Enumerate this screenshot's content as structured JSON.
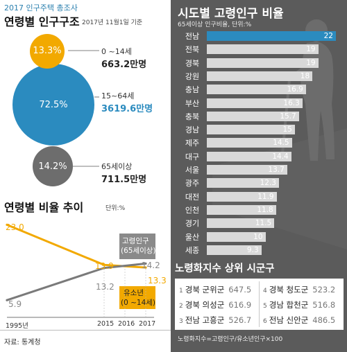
{
  "header": {
    "survey": "2017 인구주택 총조사"
  },
  "age_structure": {
    "title": "연령별 인구구조",
    "date": "2017년 11월1일 기준",
    "groups": [
      {
        "pct": "13.3%",
        "label": "0 ~14세",
        "amount": "663.2만명",
        "color": "#f2a900"
      },
      {
        "pct": "72.5%",
        "label": "15~64세",
        "amount": "3619.6만명",
        "color": "#2b8bbf"
      },
      {
        "pct": "14.2%",
        "label": "65세이상",
        "amount": "711.5만명",
        "color": "#6d6d6d"
      }
    ]
  },
  "trend": {
    "title": "연령별 비율 추이",
    "unit": "단위:%",
    "elderly_label_1": "고령인구",
    "elderly_label_2": "(65세이상)",
    "youth_label_1": "유소년",
    "youth_label_2": "(0 ~14세)",
    "x_labels": [
      "1995년",
      "2015",
      "2016",
      "2017"
    ],
    "youth_values": [
      "23.0",
      "13.9",
      "13.3"
    ],
    "elderly_values": [
      "5.9",
      "13.2",
      "14.2"
    ]
  },
  "source": "자료: 통계청",
  "region": {
    "title": "시도별 고령인구 비율",
    "subtitle": "65세이상 인구비율, 단위:%"
  },
  "index": {
    "title": "노령화지수 상위 시군구",
    "items": [
      {
        "rank": "1",
        "name": "경북 군위군",
        "value": "647.5"
      },
      {
        "rank": "2",
        "name": "경북 의성군",
        "value": "616.9"
      },
      {
        "rank": "3",
        "name": "전남 고흥군",
        "value": "526.7"
      },
      {
        "rank": "4",
        "name": "경북 청도군",
        "value": "523.2"
      },
      {
        "rank": "5",
        "name": "경남 합천군",
        "value": "516.8"
      },
      {
        "rank": "6",
        "name": "전남 신안군",
        "value": "486.5"
      }
    ],
    "formula": "노령화지수=고령인구/유소년인구×100"
  },
  "chart_data": [
    {
      "type": "bar",
      "title": "시도별 고령인구 비율",
      "subtitle": "65세이상 인구비율, 단위:%",
      "categories": [
        "전남",
        "전북",
        "경북",
        "강원",
        "충남",
        "부산",
        "충북",
        "경남",
        "제주",
        "대구",
        "서울",
        "광주",
        "대전",
        "인천",
        "경기",
        "울산",
        "세종"
      ],
      "values": [
        22,
        19,
        19,
        18,
        16.9,
        16.3,
        15.7,
        15,
        14.5,
        14.4,
        13.7,
        12.3,
        11.9,
        11.8,
        11.5,
        10,
        9.3
      ],
      "value_labels": [
        "22",
        "19",
        "19",
        "18",
        "16.9",
        "16.3",
        "15.7",
        "15",
        "14.5",
        "14.4",
        "13.7",
        "12.3",
        "11.9",
        "11.8",
        "11.5",
        "10",
        "9.3"
      ],
      "highlight_color": "#2b8bbf",
      "bar_color": "#d9d9d9"
    },
    {
      "type": "line",
      "title": "연령별 비율 추이",
      "ylabel": "단위:%",
      "x": [
        1995,
        2015,
        2016,
        2017
      ],
      "series": [
        {
          "name": "유소년 (0 ~14세)",
          "x": [
            1995,
            2015,
            2017
          ],
          "values": [
            23.0,
            13.9,
            13.3
          ],
          "color": "#f2a900"
        },
        {
          "name": "고령인구 (65세이상)",
          "x": [
            1995,
            2015,
            2017
          ],
          "values": [
            5.9,
            13.2,
            14.2
          ],
          "color": "#7a7a7a"
        }
      ]
    },
    {
      "type": "pie",
      "title": "연령별 인구구조",
      "categories": [
        "0 ~14세",
        "15~64세",
        "65세이상"
      ],
      "values": [
        13.3,
        72.5,
        14.2
      ]
    }
  ]
}
